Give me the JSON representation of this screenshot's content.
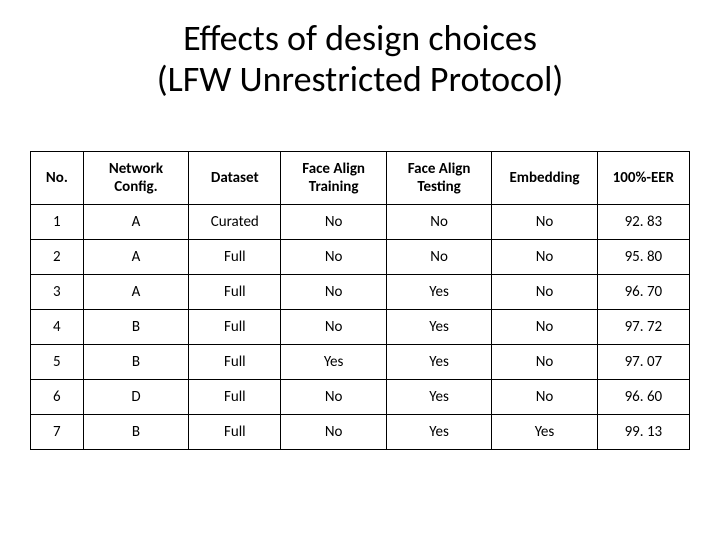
{
  "title_line1": "Effects of design choices",
  "title_line2": "(LFW Unrestricted Protocol)",
  "table": {
    "columns": [
      "No.",
      "Network Config.",
      "Dataset",
      "Face Align Training",
      "Face Align Testing",
      "Embedding",
      "100%-EER"
    ],
    "rows": [
      [
        "1",
        "A",
        "Curated",
        "No",
        "No",
        "No",
        "92. 83"
      ],
      [
        "2",
        "A",
        "Full",
        "No",
        "No",
        "No",
        "95. 80"
      ],
      [
        "3",
        "A",
        "Full",
        "No",
        "Yes",
        "No",
        "96. 70"
      ],
      [
        "4",
        "B",
        "Full",
        "No",
        "Yes",
        "No",
        "97. 72"
      ],
      [
        "5",
        "B",
        "Full",
        "Yes",
        "Yes",
        "No",
        "97. 07"
      ],
      [
        "6",
        "D",
        "Full",
        "No",
        "Yes",
        "No",
        "96. 60"
      ],
      [
        "7",
        "B",
        "Full",
        "No",
        "Yes",
        "Yes",
        "99. 13"
      ]
    ],
    "border_color": "#000000",
    "background_color": "#ffffff",
    "header_fontweight": 700,
    "cell_fontsize": 15,
    "title_fontsize": 36
  }
}
